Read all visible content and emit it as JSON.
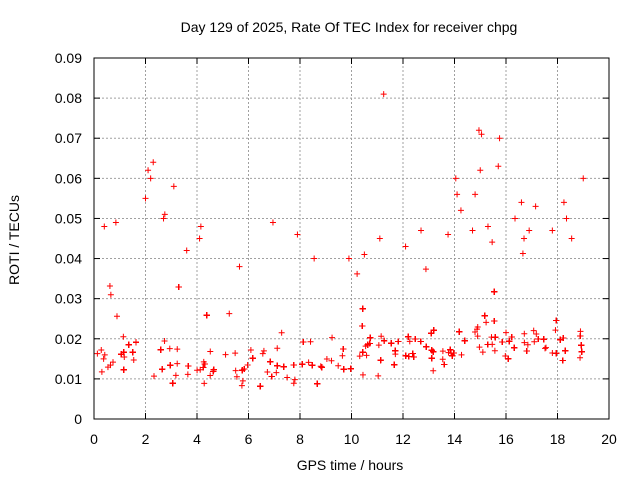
{
  "chart_data": {
    "type": "scatter",
    "title": "Day 129 of 2025, Rate Of TEC Index for receiver chpg",
    "xlabel": "GPS time / hours",
    "ylabel": "ROTI / TECUs",
    "xlim": [
      0,
      20
    ],
    "ylim": [
      0,
      0.09
    ],
    "x_ticks": [
      "0",
      "2",
      "4",
      "6",
      "8",
      "10",
      "12",
      "14",
      "16",
      "18",
      "20"
    ],
    "y_ticks": [
      "0",
      "0.01",
      "0.02",
      "0.03",
      "0.04",
      "0.05",
      "0.06",
      "0.07",
      "0.08",
      "0.09"
    ],
    "grid": true,
    "marker": "+",
    "color": "#ff0000",
    "series": [
      {
        "name": "ROTI",
        "time_range": [
          0,
          19.0
        ],
        "baseline_profile": [
          [
            0.0,
            0.013
          ],
          [
            1.0,
            0.016
          ],
          [
            2.0,
            0.016
          ],
          [
            3.0,
            0.015
          ],
          [
            4.0,
            0.013
          ],
          [
            5.0,
            0.012
          ],
          [
            6.0,
            0.012
          ],
          [
            7.0,
            0.013
          ],
          [
            8.0,
            0.013
          ],
          [
            9.0,
            0.013
          ],
          [
            10.0,
            0.014
          ],
          [
            11.0,
            0.016
          ],
          [
            12.0,
            0.017
          ],
          [
            13.0,
            0.017
          ],
          [
            14.0,
            0.018
          ],
          [
            15.0,
            0.019
          ],
          [
            16.0,
            0.019
          ],
          [
            17.0,
            0.018
          ],
          [
            18.0,
            0.018
          ],
          [
            19.0,
            0.015
          ]
        ],
        "outliers": [
          [
            11.25,
            0.081
          ],
          [
            14.95,
            0.072
          ],
          [
            15.05,
            0.071
          ],
          [
            15.75,
            0.07
          ],
          [
            15.7,
            0.063
          ],
          [
            2.3,
            0.064
          ],
          [
            2.1,
            0.062
          ],
          [
            2.2,
            0.06
          ],
          [
            3.1,
            0.058
          ],
          [
            2.0,
            0.055
          ],
          [
            19.0,
            0.06
          ],
          [
            14.05,
            0.06
          ],
          [
            14.1,
            0.056
          ],
          [
            15.0,
            0.062
          ],
          [
            14.8,
            0.056
          ],
          [
            2.7,
            0.05
          ],
          [
            2.75,
            0.051
          ],
          [
            6.95,
            0.049
          ],
          [
            7.9,
            0.046
          ],
          [
            11.1,
            0.045
          ],
          [
            0.4,
            0.048
          ],
          [
            0.85,
            0.049
          ],
          [
            4.15,
            0.048
          ],
          [
            4.1,
            0.045
          ],
          [
            17.8,
            0.047
          ],
          [
            16.6,
            0.054
          ],
          [
            17.15,
            0.053
          ],
          [
            18.35,
            0.05
          ],
          [
            18.25,
            0.054
          ],
          [
            18.55,
            0.045
          ],
          [
            13.75,
            0.046
          ],
          [
            14.25,
            0.052
          ],
          [
            14.7,
            0.047
          ],
          [
            16.7,
            0.045
          ],
          [
            12.7,
            0.047
          ],
          [
            12.1,
            0.043
          ],
          [
            3.6,
            0.042
          ],
          [
            9.9,
            0.04
          ],
          [
            5.65,
            0.038
          ],
          [
            8.55,
            0.04
          ],
          [
            10.5,
            0.041
          ],
          [
            16.35,
            0.05
          ],
          [
            16.9,
            0.047
          ],
          [
            15.3,
            0.048
          ]
        ]
      }
    ]
  }
}
